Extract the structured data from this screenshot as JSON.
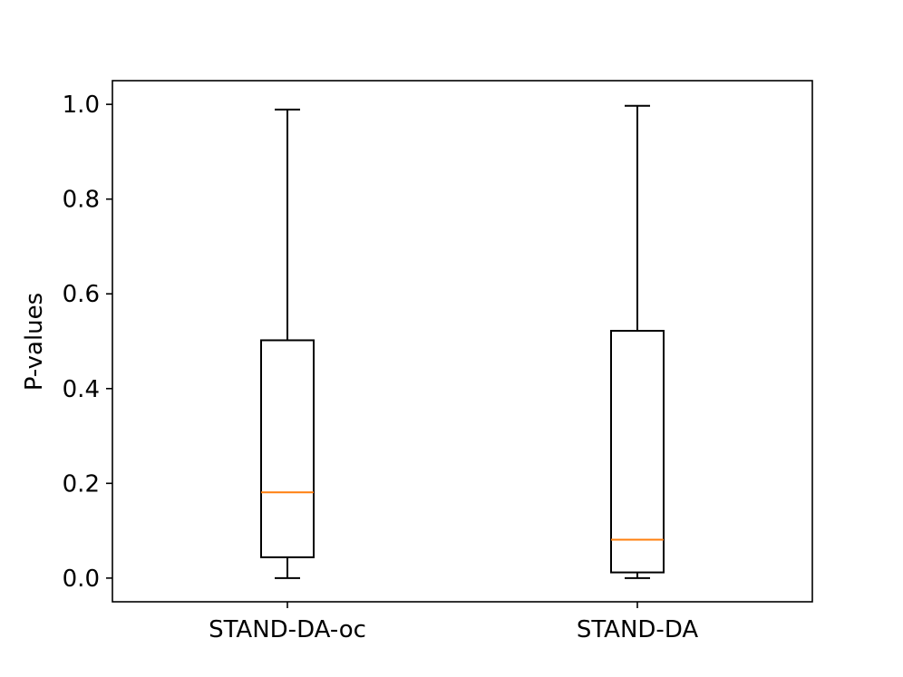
{
  "chart_data": {
    "type": "box",
    "title": "",
    "xlabel": "",
    "ylabel": "P-values",
    "ylim": [
      -0.05,
      1.05
    ],
    "yticks": [
      0.0,
      0.2,
      0.4,
      0.6,
      0.8,
      1.0
    ],
    "ytick_labels": [
      "0.0",
      "0.2",
      "0.4",
      "0.6",
      "0.8",
      "1.0"
    ],
    "categories": [
      "STAND-DA-oc",
      "STAND-DA"
    ],
    "boxes": [
      {
        "label": "STAND-DA-oc",
        "whisker_low": 0.0,
        "q1": 0.044,
        "median": 0.181,
        "q3": 0.502,
        "whisker_high": 0.989
      },
      {
        "label": "STAND-DA",
        "whisker_low": 0.0,
        "q1": 0.012,
        "median": 0.081,
        "q3": 0.522,
        "whisker_high": 0.997
      }
    ],
    "grid": false,
    "colors": {
      "box": "#000000",
      "median": "#ff7f0e"
    }
  }
}
